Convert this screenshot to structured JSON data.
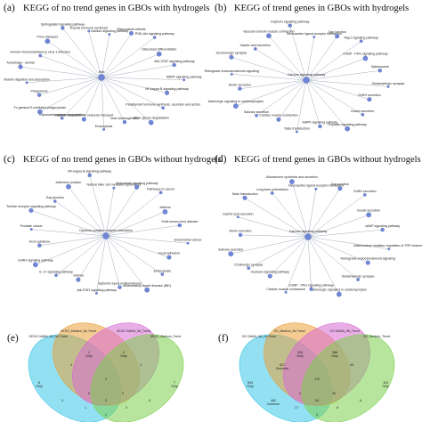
{
  "panels": [
    {
      "letter": "(a)",
      "title": "KEGG of no trend genes in GBOs with hydrogels",
      "hub": "Hub",
      "nodes": [
        "Calcium signaling pathway",
        "Rheumatoid arthritis",
        "PI3K-Akt signaling pathway",
        "Osteoclast differentiation",
        "JAK-STAT signaling pathway",
        "MAPK signaling pathway",
        "NF-kappa B signaling pathway",
        "Parathyroid hormone synthesis, secretion and action",
        "Other glycan degradation",
        "Viral carcinogenesis",
        "Endocytosis",
        "SNARE interactions in vesicular transport",
        "Glycosaminoglycan degradation",
        "Fc gamma R-mediated phagocytosis",
        "Phagosome",
        "Vitamin digestion and absorption",
        "Autophagy - animal",
        "Human immunodeficiency virus 1 infection",
        "Prion diseases",
        "Sphingolipid signaling pathway",
        "Thyroid hormone synthesis"
      ]
    },
    {
      "letter": "(b)",
      "title": "KEGG of trend genes in GBOs with hydrogels",
      "hub": "Calcium signaling pathway",
      "nodes": [
        "Neuroactive ligand-receptor interaction",
        "Gap junction",
        "Rap1 signaling pathway",
        "cGMP - PKG signaling pathway",
        "Spliceosome",
        "Glutamatergic synapse",
        "GnRH secretion",
        "Insulin secretion",
        "Oxytocin signaling pathway",
        "MAPK signaling pathway",
        "Taste transduction",
        "Cardiac muscle contraction",
        "Salivary secretion",
        "Adrenergic signaling in cardiomyocytes",
        "Renin secretion",
        "Retrograde endocannabinoid signaling",
        "Serotonergic synapse",
        "Gastric acid secretion",
        "Vascular smooth muscle contraction",
        "Oxytocin signaling pathway"
      ]
    },
    {
      "letter": "(c)",
      "title": "KEGG of no trend genes in GBOs without hydrogels",
      "hub": "Cytokine-cytokine receptor interaction",
      "nodes": [
        "Natural killer cell mediated cytotoxicity",
        "Chemokine signaling pathway",
        "Pathways in cancer",
        "Asthma",
        "Graft-versus-host disease",
        "Endometrial cancer",
        "Focal adhesion",
        "Endocytosis",
        "Inflammatory bowel disease (IBD)",
        "Systemic lupus erythematosus",
        "Jak-STAT signaling pathway",
        "Glioma",
        "IL-17 signaling pathway",
        "GnRH signaling pathway",
        "Axon guidance",
        "Prostate cancer",
        "Toll-like receptor signaling pathway",
        "Gap junction",
        "Adherens junction",
        "NF-kappa B signaling pathway"
      ]
    },
    {
      "letter": "(d)",
      "title": "KEGG of  trend genes in GBOs without hydrogels",
      "hub": "Calcium signaling pathway",
      "nodes": [
        "Neuroactive ligand-receptor interaction",
        "Gap junction",
        "GnRH secretion",
        "Insulin secretion",
        "cAMP signaling pathway",
        "Inflammatory mediator regulation of TRP channels",
        "Retrograde endocannabinoid signaling",
        "Glutamatergic synapse",
        "Adrenergic signaling in cardiomyocytes",
        "cGMP - PKG signaling pathway",
        "Cardiac muscle contraction",
        "Oxytocin signaling pathway",
        "Cholinergic synapse",
        "Salivary secretion",
        "Renin secretion",
        "Gastric acid secretion",
        "Taste transduction",
        "Long-term potentiation",
        "Aldosterone synthesis and secretion"
      ]
    }
  ],
  "venns": [
    {
      "letter": "(e)",
      "sets": [
        "KEGG GelMA_Wt_No Trend",
        "KEGG_Medium_No Trend",
        "KEGG GelMA_Wt_Trend",
        "KEGG_Medium_Trend"
      ],
      "regions": [
        "8\nOnly",
        "1\nOnly",
        "2\nOnly",
        "7\nOnly",
        "4",
        "2",
        "1",
        "3",
        "0",
        "0",
        "2",
        "1",
        "0",
        "1",
        "2"
      ],
      "colors": [
        "#3ac6e8",
        "#e9a03a",
        "#d86bd4",
        "#7ccf4f"
      ]
    },
    {
      "letter": "(f)",
      "sets": [
        "GO GelMA_Wt_No Trend",
        "GO_Medium_No Trend",
        "GO GelMA_Wt_Trend",
        "GO_Medium_Trend"
      ],
      "regions": [
        "594\nOnly",
        "304\nOnly",
        "386\nOnly",
        "110\nOnly",
        "527\nCommon",
        "176",
        "49",
        "462\nCommon",
        "6",
        "4",
        "30",
        "17",
        "8",
        "3",
        "34"
      ],
      "colors": [
        "#3ac6e8",
        "#e9a03a",
        "#d86bd4",
        "#7ccf4f"
      ]
    }
  ]
}
